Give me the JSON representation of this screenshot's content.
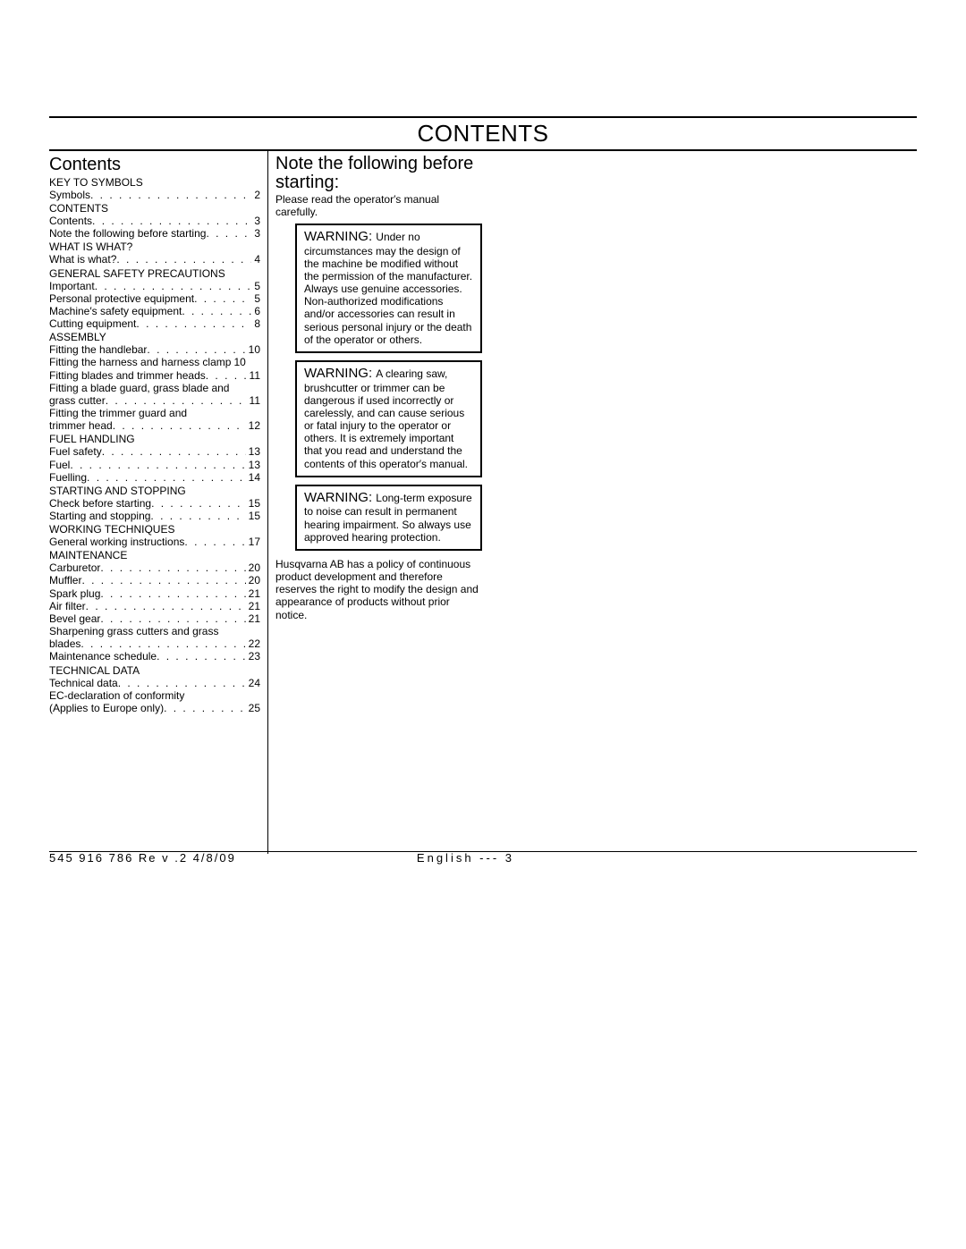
{
  "header_title": "CONTENTS",
  "left": {
    "heading": "Contents",
    "sections": [
      {
        "title": "KEY TO SYMBOLS",
        "items": [
          {
            "label": "Symbols",
            "page": "2"
          }
        ]
      },
      {
        "title": "CONTENTS",
        "items": [
          {
            "label": "Contents",
            "page": "3"
          },
          {
            "label": "Note the following before starting",
            "page": "3"
          }
        ]
      },
      {
        "title": "WHAT IS WHAT?",
        "items": [
          {
            "label": "What is what?",
            "page": "4"
          }
        ]
      },
      {
        "title": "GENERAL SAFETY PRECAUTIONS",
        "items": [
          {
            "label": "Important",
            "page": "5"
          },
          {
            "label": "Personal protective equipment",
            "page": "5"
          },
          {
            "label": "Machine′s safety equipment",
            "page": "6"
          },
          {
            "label": "Cutting equipment",
            "page": "8"
          }
        ]
      },
      {
        "title": "ASSEMBLY",
        "items": [
          {
            "label": "Fitting the handlebar",
            "page": "10"
          },
          {
            "label": "Fitting the harness and harness clamp",
            "page": "10",
            "nodots": true
          },
          {
            "label": "Fitting blades and trimmer heads",
            "page": "11"
          },
          {
            "label_pre": "Fitting a blade guard, grass blade and",
            "label": "grass cutter",
            "page": "11"
          },
          {
            "label_pre": "Fitting the trimmer guard and",
            "label": "trimmer head",
            "page": "12"
          }
        ]
      },
      {
        "title": "FUEL HANDLING",
        "items": [
          {
            "label": "Fuel safety",
            "page": "13"
          },
          {
            "label": "Fuel",
            "page": "13"
          },
          {
            "label": "Fuelling",
            "page": "14"
          }
        ]
      },
      {
        "title": "STARTING AND STOPPING",
        "items": [
          {
            "label": "Check before starting",
            "page": "15"
          },
          {
            "label": "Starting and stopping",
            "page": "15"
          }
        ]
      },
      {
        "title": "WORKING TECHNIQUES",
        "items": [
          {
            "label": "General working instructions",
            "page": "17"
          }
        ]
      },
      {
        "title": "MAINTENANCE",
        "items": [
          {
            "label": "Carburetor",
            "page": "20"
          },
          {
            "label": "Muffler",
            "page": "20"
          },
          {
            "label": "Spark plug",
            "page": "21"
          },
          {
            "label": "Air filter",
            "page": "21"
          },
          {
            "label": "Bevel gear",
            "page": "21"
          },
          {
            "label_pre": "Sharpening grass cutters and grass",
            "label": "blades",
            "page": "22"
          },
          {
            "label": "Maintenance schedule",
            "page": "23"
          }
        ]
      },
      {
        "title": "TECHNICAL DATA",
        "items": [
          {
            "label": "Technical data",
            "page": "24"
          },
          {
            "label_pre": "EC-declaration of conformity",
            "label": "(Applies to Europe only)",
            "page": "25"
          }
        ]
      }
    ]
  },
  "right": {
    "heading": "Note the following before starting:",
    "subnote": "Please read the operator′s manual carefully.",
    "warnings": [
      "Under no circumstances may the design of the machine be modified without the permission of the manufacturer. Always use genuine accessories. Non-authorized modifications and/or accessories can result in serious personal injury or the death of the operator or others.",
      "A clearing saw, brushcutter or trimmer can be dangerous if used incorrectly or carelessly, and can cause serious or fatal injury to the operator or others. It is extremely important that you read and understand the contents of this operator′s manual.",
      "Long-term exposure to noise can result in permanent hearing impairment. So always use approved hearing protection."
    ],
    "warn_label": "WARNING:",
    "policy": "Husqvarna AB has a policy of continuous product development and therefore reserves the right to modify the design and appearance of products without prior notice."
  },
  "footer": {
    "left": "545 916 786  Re v .2   4/8/09",
    "right": "English --- 3"
  }
}
